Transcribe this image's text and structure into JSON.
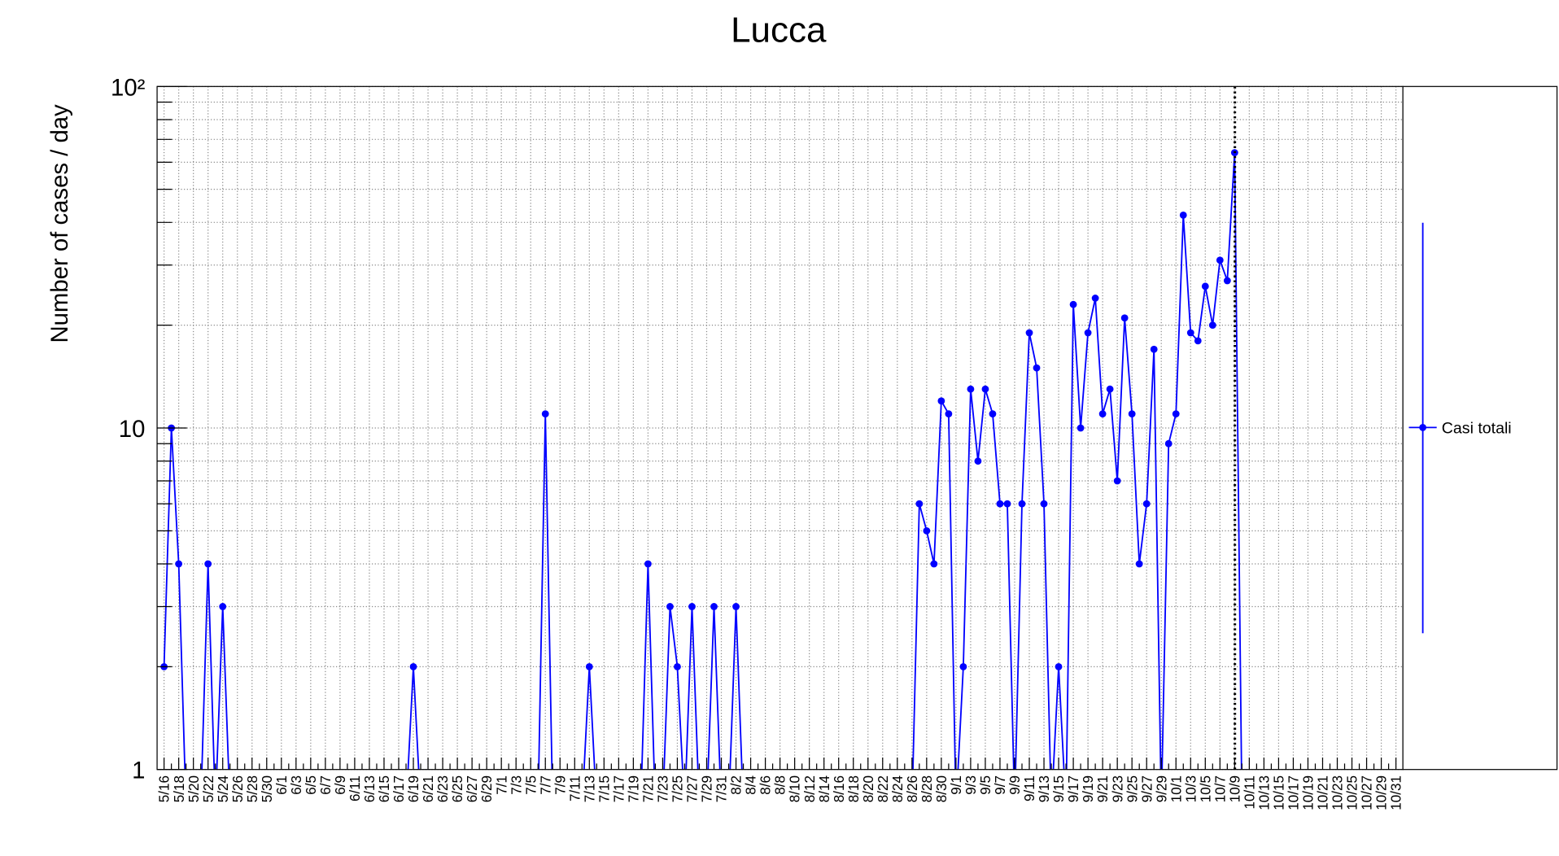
{
  "chart_data": {
    "type": "line",
    "title": "Lucca",
    "y_label": "Number of cases / day",
    "log_scale_y": true,
    "grid": true,
    "legend_position": "right",
    "ylim": [
      1,
      100
    ],
    "yticks": [
      1,
      10,
      {
        "value": 100,
        "label": "10²"
      }
    ],
    "categories": [
      "5/16",
      null,
      "5/18",
      null,
      "5/20",
      null,
      "5/22",
      null,
      "5/24",
      null,
      "5/26",
      null,
      "5/28",
      null,
      "5/30",
      null,
      "6/1",
      null,
      "6/3",
      null,
      "6/5",
      null,
      "6/7",
      null,
      "6/9",
      null,
      "6/11",
      null,
      "6/13",
      null,
      "6/15",
      null,
      "6/17",
      null,
      "6/19",
      null,
      "6/21",
      null,
      "6/23",
      null,
      "6/25",
      null,
      "6/27",
      null,
      "6/29",
      null,
      "7/1",
      null,
      "7/3",
      null,
      "7/5",
      null,
      "7/7",
      null,
      "7/9",
      null,
      "7/11",
      null,
      "7/13",
      null,
      "7/15",
      null,
      "7/17",
      null,
      "7/19",
      null,
      "7/21",
      null,
      "7/23",
      null,
      "7/25",
      null,
      "7/27",
      null,
      "7/29",
      null,
      "7/31",
      null,
      "8/2",
      null,
      "8/4",
      null,
      "8/6",
      null,
      "8/8",
      null,
      "8/10",
      null,
      "8/12",
      null,
      "8/14",
      null,
      "8/16",
      null,
      "8/18",
      null,
      "8/20",
      null,
      "8/22",
      null,
      "8/24",
      null,
      "8/26",
      null,
      "8/28",
      null,
      "8/30",
      null,
      "9/1",
      null,
      "9/3",
      null,
      "9/5",
      null,
      "9/7",
      null,
      "9/9",
      null,
      "9/11",
      null,
      "9/13",
      null,
      "9/15",
      null,
      "9/17",
      null,
      "9/19",
      null,
      "9/21",
      null,
      "9/23",
      null,
      "9/25",
      null,
      "9/27",
      null,
      "9/29",
      null,
      "10/1",
      null,
      "10/3",
      null,
      "10/5",
      null,
      "10/7",
      null,
      "10/9",
      null,
      "10/11",
      null,
      "10/13",
      null,
      "10/15",
      null,
      "10/17",
      null,
      "10/19",
      null,
      "10/21",
      null,
      "10/23",
      null,
      "10/25",
      null,
      "10/27",
      null,
      "10/29",
      null,
      "10/31"
    ],
    "series": [
      {
        "name": "Casi totali",
        "color": "#0000ff",
        "values": [
          2,
          10,
          4,
          0,
          0,
          0,
          4,
          0,
          3,
          0,
          0,
          0,
          0,
          0,
          0,
          0,
          0,
          0,
          0,
          0,
          0,
          0,
          0,
          0,
          0,
          0,
          0,
          0,
          0,
          0,
          0,
          0,
          0,
          0,
          2,
          0,
          0,
          0,
          0,
          0,
          0,
          0,
          0,
          0,
          0,
          0,
          0,
          0,
          0,
          0,
          0,
          0,
          11,
          0,
          0,
          0,
          0,
          0,
          2,
          0,
          0,
          0,
          0,
          0,
          0,
          0,
          4,
          0,
          0,
          3,
          2,
          0,
          3,
          0,
          0,
          3,
          0,
          0,
          3,
          0,
          0,
          0,
          0,
          0,
          0,
          0,
          0,
          0,
          0,
          0,
          0,
          0,
          0,
          0,
          0,
          0,
          0,
          0,
          0,
          0,
          0,
          0,
          0,
          6,
          5,
          4,
          12,
          11,
          0,
          2,
          13,
          8,
          13,
          11,
          6,
          6,
          0,
          6,
          19,
          15,
          6,
          0,
          2,
          0,
          23,
          10,
          19,
          24,
          11,
          13,
          7,
          21,
          11,
          4,
          6,
          17,
          0,
          9,
          11,
          42,
          19,
          18,
          26,
          20,
          31,
          27,
          64,
          0,
          null,
          null,
          null,
          null,
          null,
          null,
          null,
          null,
          null,
          null,
          null,
          null,
          null,
          null,
          null,
          null,
          null,
          null,
          null,
          null,
          null
        ]
      }
    ]
  }
}
